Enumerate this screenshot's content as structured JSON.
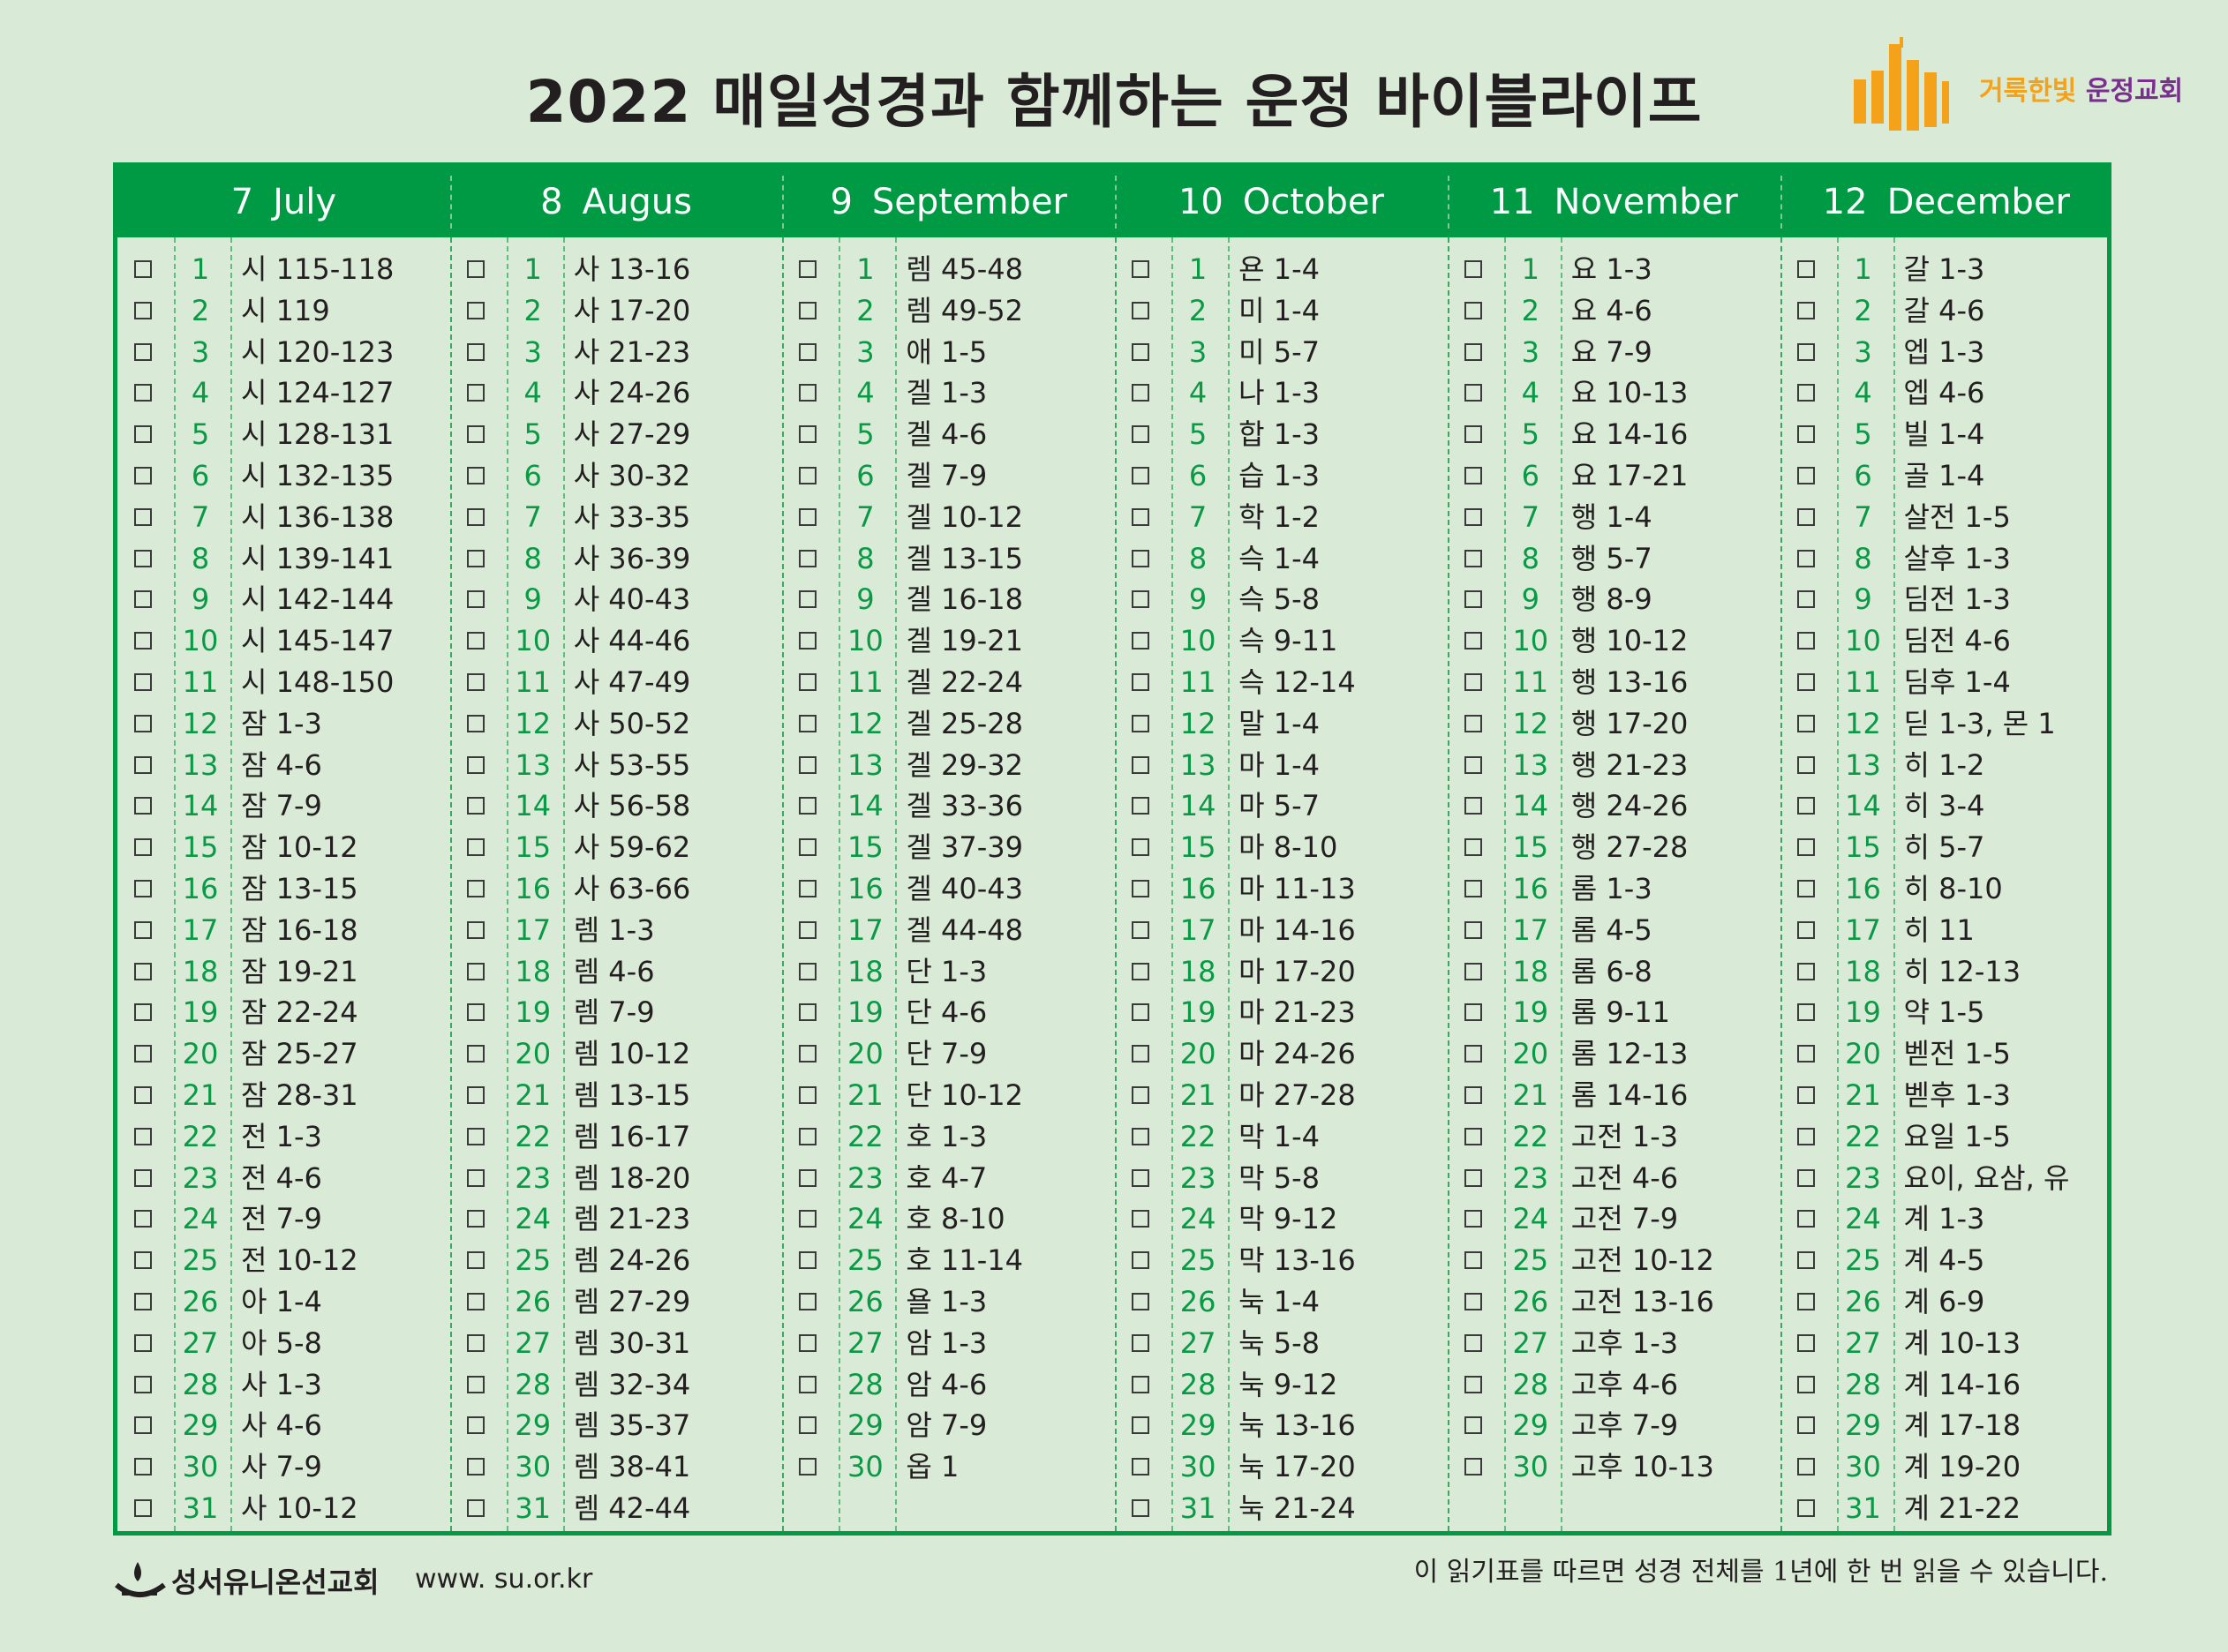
{
  "title": "2022 매일성경과 함께하는 운정 바이블라이프",
  "logo": {
    "text": "거룩한빛 운정교회",
    "part1": "거룩한빛",
    "part2": "운정교회"
  },
  "months": [
    {
      "num": "7",
      "name": "July",
      "days": [
        {
          "d": "1",
          "r": "시 115-118"
        },
        {
          "d": "2",
          "r": "시 119"
        },
        {
          "d": "3",
          "r": "시 120-123"
        },
        {
          "d": "4",
          "r": "시 124-127"
        },
        {
          "d": "5",
          "r": "시 128-131"
        },
        {
          "d": "6",
          "r": "시 132-135"
        },
        {
          "d": "7",
          "r": "시 136-138"
        },
        {
          "d": "8",
          "r": "시 139-141"
        },
        {
          "d": "9",
          "r": "시 142-144"
        },
        {
          "d": "10",
          "r": "시 145-147"
        },
        {
          "d": "11",
          "r": "시 148-150"
        },
        {
          "d": "12",
          "r": "잠 1-3"
        },
        {
          "d": "13",
          "r": "잠 4-6"
        },
        {
          "d": "14",
          "r": "잠 7-9"
        },
        {
          "d": "15",
          "r": "잠 10-12"
        },
        {
          "d": "16",
          "r": "잠 13-15"
        },
        {
          "d": "17",
          "r": "잠 16-18"
        },
        {
          "d": "18",
          "r": "잠 19-21"
        },
        {
          "d": "19",
          "r": "잠 22-24"
        },
        {
          "d": "20",
          "r": "잠 25-27"
        },
        {
          "d": "21",
          "r": "잠 28-31"
        },
        {
          "d": "22",
          "r": "전 1-3"
        },
        {
          "d": "23",
          "r": "전 4-6"
        },
        {
          "d": "24",
          "r": "전 7-9"
        },
        {
          "d": "25",
          "r": "전 10-12"
        },
        {
          "d": "26",
          "r": "아 1-4"
        },
        {
          "d": "27",
          "r": "아 5-8"
        },
        {
          "d": "28",
          "r": "사 1-3"
        },
        {
          "d": "29",
          "r": "사 4-6"
        },
        {
          "d": "30",
          "r": "사 7-9"
        },
        {
          "d": "31",
          "r": "사 10-12"
        }
      ]
    },
    {
      "num": "8",
      "name": "Augus",
      "days": [
        {
          "d": "1",
          "r": "사 13-16"
        },
        {
          "d": "2",
          "r": "사 17-20"
        },
        {
          "d": "3",
          "r": "사 21-23"
        },
        {
          "d": "4",
          "r": "사 24-26"
        },
        {
          "d": "5",
          "r": "사 27-29"
        },
        {
          "d": "6",
          "r": "사 30-32"
        },
        {
          "d": "7",
          "r": "사 33-35"
        },
        {
          "d": "8",
          "r": "사 36-39"
        },
        {
          "d": "9",
          "r": "사 40-43"
        },
        {
          "d": "10",
          "r": "사 44-46"
        },
        {
          "d": "11",
          "r": "사 47-49"
        },
        {
          "d": "12",
          "r": "사 50-52"
        },
        {
          "d": "13",
          "r": "사 53-55"
        },
        {
          "d": "14",
          "r": "사 56-58"
        },
        {
          "d": "15",
          "r": "사 59-62"
        },
        {
          "d": "16",
          "r": "사 63-66"
        },
        {
          "d": "17",
          "r": "렘 1-3"
        },
        {
          "d": "18",
          "r": "렘 4-6"
        },
        {
          "d": "19",
          "r": "렘 7-9"
        },
        {
          "d": "20",
          "r": "렘 10-12"
        },
        {
          "d": "21",
          "r": "렘 13-15"
        },
        {
          "d": "22",
          "r": "렘 16-17"
        },
        {
          "d": "23",
          "r": "렘 18-20"
        },
        {
          "d": "24",
          "r": "렘 21-23"
        },
        {
          "d": "25",
          "r": "렘 24-26"
        },
        {
          "d": "26",
          "r": "렘 27-29"
        },
        {
          "d": "27",
          "r": "렘 30-31"
        },
        {
          "d": "28",
          "r": "렘 32-34"
        },
        {
          "d": "29",
          "r": "렘 35-37"
        },
        {
          "d": "30",
          "r": "렘 38-41"
        },
        {
          "d": "31",
          "r": "렘 42-44"
        }
      ]
    },
    {
      "num": "9",
      "name": "September",
      "days": [
        {
          "d": "1",
          "r": "렘 45-48"
        },
        {
          "d": "2",
          "r": "렘 49-52"
        },
        {
          "d": "3",
          "r": "애 1-5"
        },
        {
          "d": "4",
          "r": "겔 1-3"
        },
        {
          "d": "5",
          "r": "겔 4-6"
        },
        {
          "d": "6",
          "r": "겔 7-9"
        },
        {
          "d": "7",
          "r": "겔 10-12"
        },
        {
          "d": "8",
          "r": "겔 13-15"
        },
        {
          "d": "9",
          "r": "겔 16-18"
        },
        {
          "d": "10",
          "r": "겔 19-21"
        },
        {
          "d": "11",
          "r": "겔 22-24"
        },
        {
          "d": "12",
          "r": "겔 25-28"
        },
        {
          "d": "13",
          "r": "겔 29-32"
        },
        {
          "d": "14",
          "r": "겔 33-36"
        },
        {
          "d": "15",
          "r": "겔 37-39"
        },
        {
          "d": "16",
          "r": "겔 40-43"
        },
        {
          "d": "17",
          "r": "겔 44-48"
        },
        {
          "d": "18",
          "r": "단 1-3"
        },
        {
          "d": "19",
          "r": "단 4-6"
        },
        {
          "d": "20",
          "r": "단 7-9"
        },
        {
          "d": "21",
          "r": "단 10-12"
        },
        {
          "d": "22",
          "r": "호 1-3"
        },
        {
          "d": "23",
          "r": "호 4-7"
        },
        {
          "d": "24",
          "r": "호 8-10"
        },
        {
          "d": "25",
          "r": "호 11-14"
        },
        {
          "d": "26",
          "r": "욜 1-3"
        },
        {
          "d": "27",
          "r": "암 1-3"
        },
        {
          "d": "28",
          "r": "암 4-6"
        },
        {
          "d": "29",
          "r": "암 7-9"
        },
        {
          "d": "30",
          "r": "옵 1"
        }
      ]
    },
    {
      "num": "10",
      "name": "October",
      "days": [
        {
          "d": "1",
          "r": "욘 1-4"
        },
        {
          "d": "2",
          "r": "미 1-4"
        },
        {
          "d": "3",
          "r": "미 5-7"
        },
        {
          "d": "4",
          "r": "나 1-3"
        },
        {
          "d": "5",
          "r": "합 1-3"
        },
        {
          "d": "6",
          "r": "습 1-3"
        },
        {
          "d": "7",
          "r": "학 1-2"
        },
        {
          "d": "8",
          "r": "슥 1-4"
        },
        {
          "d": "9",
          "r": "슥 5-8"
        },
        {
          "d": "10",
          "r": "슥 9-11"
        },
        {
          "d": "11",
          "r": "슥 12-14"
        },
        {
          "d": "12",
          "r": "말 1-4"
        },
        {
          "d": "13",
          "r": "마 1-4"
        },
        {
          "d": "14",
          "r": "마 5-7"
        },
        {
          "d": "15",
          "r": "마 8-10"
        },
        {
          "d": "16",
          "r": "마 11-13"
        },
        {
          "d": "17",
          "r": "마 14-16"
        },
        {
          "d": "18",
          "r": "마 17-20"
        },
        {
          "d": "19",
          "r": "마 21-23"
        },
        {
          "d": "20",
          "r": "마 24-26"
        },
        {
          "d": "21",
          "r": "마 27-28"
        },
        {
          "d": "22",
          "r": "막 1-4"
        },
        {
          "d": "23",
          "r": "막 5-8"
        },
        {
          "d": "24",
          "r": "막 9-12"
        },
        {
          "d": "25",
          "r": "막 13-16"
        },
        {
          "d": "26",
          "r": "눅 1-4"
        },
        {
          "d": "27",
          "r": "눅 5-8"
        },
        {
          "d": "28",
          "r": "눅 9-12"
        },
        {
          "d": "29",
          "r": "눅 13-16"
        },
        {
          "d": "30",
          "r": "눅 17-20"
        },
        {
          "d": "31",
          "r": "눅 21-24"
        }
      ]
    },
    {
      "num": "11",
      "name": "November",
      "days": [
        {
          "d": "1",
          "r": "요 1-3"
        },
        {
          "d": "2",
          "r": "요 4-6"
        },
        {
          "d": "3",
          "r": "요 7-9"
        },
        {
          "d": "4",
          "r": "요 10-13"
        },
        {
          "d": "5",
          "r": "요 14-16"
        },
        {
          "d": "6",
          "r": "요 17-21"
        },
        {
          "d": "7",
          "r": "행 1-4"
        },
        {
          "d": "8",
          "r": "행 5-7"
        },
        {
          "d": "9",
          "r": "행 8-9"
        },
        {
          "d": "10",
          "r": "행 10-12"
        },
        {
          "d": "11",
          "r": "행 13-16"
        },
        {
          "d": "12",
          "r": "행 17-20"
        },
        {
          "d": "13",
          "r": "행 21-23"
        },
        {
          "d": "14",
          "r": "행 24-26"
        },
        {
          "d": "15",
          "r": "행 27-28"
        },
        {
          "d": "16",
          "r": "롬 1-3"
        },
        {
          "d": "17",
          "r": "롬 4-5"
        },
        {
          "d": "18",
          "r": "롬 6-8"
        },
        {
          "d": "19",
          "r": "롬 9-11"
        },
        {
          "d": "20",
          "r": "롬 12-13"
        },
        {
          "d": "21",
          "r": "롬 14-16"
        },
        {
          "d": "22",
          "r": "고전 1-3"
        },
        {
          "d": "23",
          "r": "고전 4-6"
        },
        {
          "d": "24",
          "r": "고전 7-9"
        },
        {
          "d": "25",
          "r": "고전 10-12"
        },
        {
          "d": "26",
          "r": "고전 13-16"
        },
        {
          "d": "27",
          "r": "고후 1-3"
        },
        {
          "d": "28",
          "r": "고후 4-6"
        },
        {
          "d": "29",
          "r": "고후 7-9"
        },
        {
          "d": "30",
          "r": "고후 10-13"
        }
      ]
    },
    {
      "num": "12",
      "name": "December",
      "days": [
        {
          "d": "1",
          "r": "갈 1-3"
        },
        {
          "d": "2",
          "r": "갈 4-6"
        },
        {
          "d": "3",
          "r": "엡 1-3"
        },
        {
          "d": "4",
          "r": "엡 4-6"
        },
        {
          "d": "5",
          "r": "빌 1-4"
        },
        {
          "d": "6",
          "r": "골 1-4"
        },
        {
          "d": "7",
          "r": "살전 1-5"
        },
        {
          "d": "8",
          "r": "살후 1-3"
        },
        {
          "d": "9",
          "r": "딤전 1-3"
        },
        {
          "d": "10",
          "r": "딤전 4-6"
        },
        {
          "d": "11",
          "r": "딤후 1-4"
        },
        {
          "d": "12",
          "r": "딛 1-3, 몬 1"
        },
        {
          "d": "13",
          "r": "히 1-2"
        },
        {
          "d": "14",
          "r": "히 3-4"
        },
        {
          "d": "15",
          "r": "히 5-7"
        },
        {
          "d": "16",
          "r": "히 8-10"
        },
        {
          "d": "17",
          "r": "히 11"
        },
        {
          "d": "18",
          "r": "히 12-13"
        },
        {
          "d": "19",
          "r": "약 1-5"
        },
        {
          "d": "20",
          "r": "벧전 1-5"
        },
        {
          "d": "21",
          "r": "벧후 1-3"
        },
        {
          "d": "22",
          "r": "요일 1-5"
        },
        {
          "d": "23",
          "r": "요이, 요삼, 유"
        },
        {
          "d": "24",
          "r": "계 1-3"
        },
        {
          "d": "25",
          "r": "계 4-5"
        },
        {
          "d": "26",
          "r": "계 6-9"
        },
        {
          "d": "27",
          "r": "계 10-13"
        },
        {
          "d": "28",
          "r": "계 14-16"
        },
        {
          "d": "29",
          "r": "계 17-18"
        },
        {
          "d": "30",
          "r": "계 19-20"
        },
        {
          "d": "31",
          "r": "계 21-22"
        }
      ]
    }
  ],
  "footer": {
    "org": "성서유니온선교회",
    "url": "www. su.or.kr",
    "note": "이 읽기표를 따르면 성경 전체를 1년에 한 번 읽을 수 있습니다."
  },
  "colors": {
    "green": "#009a44",
    "background": "#d9ead6",
    "orange": "#f5a21b",
    "purple": "#7a2f8f"
  },
  "icons": {
    "checkbox": "checkbox-icon",
    "church_logo": "building-logo-icon",
    "su_logo": "su-lamp-logo-icon"
  }
}
